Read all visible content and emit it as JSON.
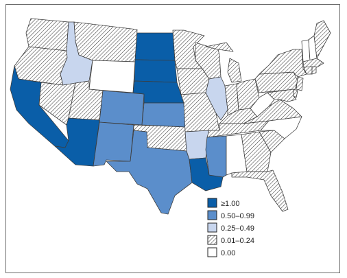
{
  "colors": {
    "c4": "#0a5ea8",
    "c3": "#5b8ecb",
    "c2": "#c8d6ee",
    "c1": "hatch",
    "c0": "#ffffff"
  },
  "legend": [
    {
      "cls": "c4",
      "label": "≥1.00"
    },
    {
      "cls": "c3",
      "label": "0.50–0.99"
    },
    {
      "cls": "c2",
      "label": "0.25–0.49"
    },
    {
      "cls": "c1",
      "label": "0.01–0.24"
    },
    {
      "cls": "c0",
      "label": "0.00"
    }
  ],
  "states": [
    {
      "id": "WA",
      "cls": "c1"
    },
    {
      "id": "OR",
      "cls": "c1"
    },
    {
      "id": "CA",
      "cls": "c4"
    },
    {
      "id": "ID",
      "cls": "c2"
    },
    {
      "id": "NV",
      "cls": "c1"
    },
    {
      "id": "MT",
      "cls": "c1"
    },
    {
      "id": "WY",
      "cls": "c0"
    },
    {
      "id": "UT",
      "cls": "c1"
    },
    {
      "id": "AZ",
      "cls": "c4"
    },
    {
      "id": "CO",
      "cls": "c3"
    },
    {
      "id": "NM",
      "cls": "c3"
    },
    {
      "id": "ND",
      "cls": "c4"
    },
    {
      "id": "SD",
      "cls": "c4"
    },
    {
      "id": "NE",
      "cls": "c4"
    },
    {
      "id": "KS",
      "cls": "c3"
    },
    {
      "id": "OK",
      "cls": "c1"
    },
    {
      "id": "TX",
      "cls": "c3"
    },
    {
      "id": "MN",
      "cls": "c1"
    },
    {
      "id": "IA",
      "cls": "c1"
    },
    {
      "id": "MO",
      "cls": "c1"
    },
    {
      "id": "AR",
      "cls": "c2"
    },
    {
      "id": "LA",
      "cls": "c4"
    },
    {
      "id": "WI",
      "cls": "c1"
    },
    {
      "id": "IL",
      "cls": "c2"
    },
    {
      "id": "MI",
      "cls": "c1"
    },
    {
      "id": "IN",
      "cls": "c1"
    },
    {
      "id": "OH",
      "cls": "c1"
    },
    {
      "id": "KY",
      "cls": "c1"
    },
    {
      "id": "TN",
      "cls": "c1"
    },
    {
      "id": "MS",
      "cls": "c3"
    },
    {
      "id": "AL",
      "cls": "c0"
    },
    {
      "id": "GA",
      "cls": "c1"
    },
    {
      "id": "FL",
      "cls": "c1"
    },
    {
      "id": "SC",
      "cls": "c1"
    },
    {
      "id": "NC",
      "cls": "c0"
    },
    {
      "id": "VA",
      "cls": "c1"
    },
    {
      "id": "WV",
      "cls": "c0"
    },
    {
      "id": "PA",
      "cls": "c1"
    },
    {
      "id": "NY",
      "cls": "c1"
    },
    {
      "id": "VT",
      "cls": "c0"
    },
    {
      "id": "NH",
      "cls": "c0"
    },
    {
      "id": "ME",
      "cls": "c1"
    },
    {
      "id": "MA",
      "cls": "c1"
    },
    {
      "id": "CT",
      "cls": "c1"
    },
    {
      "id": "RI",
      "cls": "c1"
    },
    {
      "id": "NJ",
      "cls": "c1"
    },
    {
      "id": "DE",
      "cls": "c1"
    },
    {
      "id": "MD",
      "cls": "c1"
    }
  ]
}
